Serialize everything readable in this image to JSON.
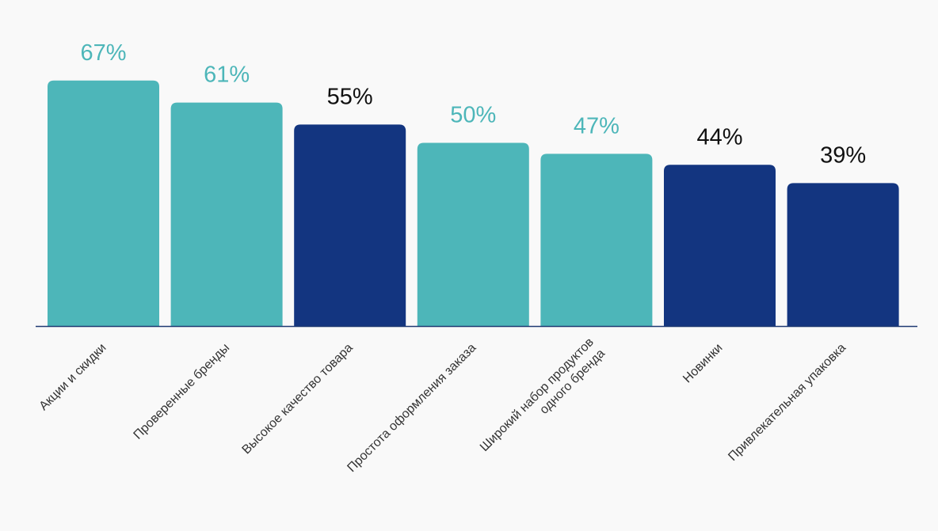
{
  "chart_data": {
    "type": "bar",
    "title": "",
    "xlabel": "",
    "ylabel": "",
    "ylim": [
      0,
      70
    ],
    "grid": false,
    "legend": "none",
    "categories": [
      "Акции и скидки",
      "Проверенные бренды",
      "Высокое качество товара",
      "Простота оформления заказа",
      "Широкий набор продуктов\nодного бренда",
      "Новинки",
      "Привлекательная упаковка"
    ],
    "values": [
      67,
      61,
      55,
      50,
      47,
      44,
      39
    ],
    "value_labels": [
      "67%",
      "61%",
      "55%",
      "50%",
      "47%",
      "44%",
      "39%"
    ],
    "bar_colors": [
      "#4db6b9",
      "#4db6b9",
      "#133580",
      "#4db6b9",
      "#4db6b9",
      "#133580",
      "#133580"
    ],
    "value_label_colors": [
      "#4db6b9",
      "#4db6b9",
      "#111111",
      "#4db6b9",
      "#4db6b9",
      "#111111",
      "#111111"
    ],
    "axis_color": "#1f3a73",
    "category_label_color": "#333333"
  }
}
